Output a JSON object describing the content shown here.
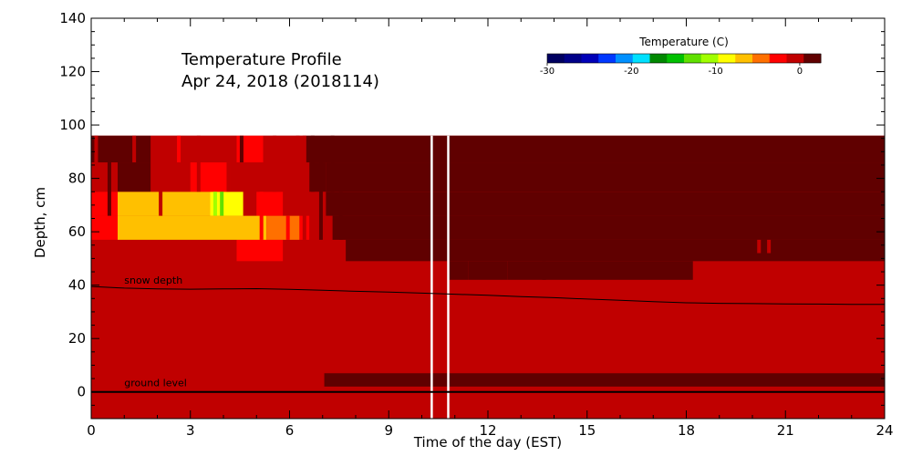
{
  "chart_data": {
    "type": "heatmap",
    "title": "Temperature Profile",
    "subtitle": "Apr 24, 2018 (2018114)",
    "xlabel": "Time of the day (EST)",
    "ylabel": "Depth, cm",
    "xlim": [
      0,
      24
    ],
    "ylim": [
      -10,
      140
    ],
    "x_ticks": [
      0,
      3,
      6,
      9,
      12,
      15,
      18,
      21,
      24
    ],
    "y_ticks": [
      0,
      20,
      40,
      60,
      80,
      100,
      120,
      140
    ],
    "grid": false,
    "colorbar": {
      "title": "Temperature (C)",
      "ticks": [
        -30,
        -20,
        -10,
        0
      ],
      "range": [
        -30,
        2.5
      ],
      "colors": [
        "#000060",
        "#000088",
        "#0000b8",
        "#0038ff",
        "#0090ff",
        "#00e0ff",
        "#008800",
        "#00c000",
        "#60e000",
        "#a0ff00",
        "#ffff00",
        "#ffc000",
        "#ff7000",
        "#ff0000",
        "#c00000",
        "#600000"
      ]
    },
    "background_temperature": 0.3,
    "cells": [
      {
        "t0": 7.05,
        "t1": 24,
        "d0": 2,
        "d1": 7,
        "temp": 2.2
      },
      {
        "t0": 10.8,
        "t1": 11.4,
        "d0": 42,
        "d1": 49,
        "temp": 1.3
      },
      {
        "t0": 11.4,
        "t1": 12.6,
        "d0": 42,
        "d1": 49,
        "temp": 1.5
      },
      {
        "t0": 12.6,
        "t1": 14.0,
        "d0": 42,
        "d1": 49,
        "temp": 1.9
      },
      {
        "t0": 14.0,
        "t1": 16.8,
        "d0": 42,
        "d1": 49,
        "temp": 1.5
      },
      {
        "t0": 16.8,
        "t1": 18.2,
        "d0": 42,
        "d1": 49,
        "temp": 1.4
      },
      {
        "t0": 0,
        "t1": 1.9,
        "d0": 49,
        "d1": 57,
        "temp": 0.3
      },
      {
        "t0": 1.9,
        "t1": 3.1,
        "d0": 49,
        "d1": 57,
        "temp": -0.4
      },
      {
        "t0": 3.1,
        "t1": 4.4,
        "d0": 49,
        "d1": 57,
        "temp": -1.4
      },
      {
        "t0": 4.4,
        "t1": 5.8,
        "d0": 49,
        "d1": 57,
        "temp": -3.0
      },
      {
        "t0": 5.8,
        "t1": 6.5,
        "d0": 49,
        "d1": 57,
        "temp": -1.4
      },
      {
        "t0": 6.5,
        "t1": 6.8,
        "d0": 49,
        "d1": 57,
        "temp": -0.4
      },
      {
        "t0": 6.8,
        "t1": 7.7,
        "d0": 49,
        "d1": 57,
        "temp": 0.3
      },
      {
        "t0": 7.7,
        "t1": 24,
        "d0": 49,
        "d1": 57,
        "temp": 2.2
      },
      {
        "t0": 19.9,
        "t1": 20.9,
        "d0": 52,
        "d1": 57,
        "temp": 1.3
      },
      {
        "t0": 0,
        "t1": 0.8,
        "d0": 57,
        "d1": 66,
        "temp": -3.0
      },
      {
        "t0": 0.8,
        "t1": 5.3,
        "d0": 57,
        "d1": 66,
        "temp": -6.0
      },
      {
        "t0": 5.3,
        "t1": 6.3,
        "d0": 57,
        "d1": 66,
        "temp": -4.2
      },
      {
        "t0": 6.3,
        "t1": 6.6,
        "d0": 57,
        "d1": 66,
        "temp": -3.0
      },
      {
        "t0": 6.6,
        "t1": 7.3,
        "d0": 57,
        "d1": 66,
        "temp": -1.4
      },
      {
        "t0": 7.3,
        "t1": 24,
        "d0": 57,
        "d1": 66,
        "temp": 2.2
      },
      {
        "t0": 0,
        "t1": 0.8,
        "d0": 66,
        "d1": 75,
        "temp": -3.0
      },
      {
        "t0": 0.8,
        "t1": 3.6,
        "d0": 66,
        "d1": 75,
        "temp": -6.0
      },
      {
        "t0": 3.6,
        "t1": 4.6,
        "d0": 66,
        "d1": 75,
        "temp": -8.0
      },
      {
        "t0": 4.6,
        "t1": 5.0,
        "d0": 66,
        "d1": 75,
        "temp": -1.4
      },
      {
        "t0": 5.0,
        "t1": 5.8,
        "d0": 66,
        "d1": 75,
        "temp": -3.0
      },
      {
        "t0": 5.8,
        "t1": 6.5,
        "d0": 66,
        "d1": 75,
        "temp": -0.4
      },
      {
        "t0": 6.5,
        "t1": 7.1,
        "d0": 66,
        "d1": 75,
        "temp": 0.3
      },
      {
        "t0": 7.1,
        "t1": 24,
        "d0": 66,
        "d1": 75,
        "temp": 2.2
      },
      {
        "t0": 0,
        "t1": 0.8,
        "d0": 75,
        "d1": 86,
        "temp": 0.3
      },
      {
        "t0": 0.8,
        "t1": 1.8,
        "d0": 75,
        "d1": 86,
        "temp": 1.3
      },
      {
        "t0": 1.8,
        "t1": 2.4,
        "d0": 75,
        "d1": 86,
        "temp": -0.4
      },
      {
        "t0": 2.4,
        "t1": 3.0,
        "d0": 75,
        "d1": 86,
        "temp": -1.4
      },
      {
        "t0": 3.0,
        "t1": 4.2,
        "d0": 75,
        "d1": 86,
        "temp": -3.0
      },
      {
        "t0": 4.2,
        "t1": 4.8,
        "d0": 75,
        "d1": 86,
        "temp": -0.4
      },
      {
        "t0": 4.8,
        "t1": 6.2,
        "d0": 75,
        "d1": 86,
        "temp": 0.3
      },
      {
        "t0": 6.2,
        "t1": 6.6,
        "d0": 75,
        "d1": 86,
        "temp": -1.4
      },
      {
        "t0": 6.6,
        "t1": 7.1,
        "d0": 75,
        "d1": 86,
        "temp": 1.3
      },
      {
        "t0": 7.1,
        "t1": 24,
        "d0": 75,
        "d1": 86,
        "temp": 2.2
      },
      {
        "t0": 0,
        "t1": 1.8,
        "d0": 86,
        "d1": 96,
        "temp": 2.2
      },
      {
        "t0": 1.8,
        "t1": 2.8,
        "d0": 86,
        "d1": 96,
        "temp": 0.3
      },
      {
        "t0": 2.8,
        "t1": 3.6,
        "d0": 86,
        "d1": 96,
        "temp": -1.4
      },
      {
        "t0": 3.6,
        "t1": 4.4,
        "d0": 86,
        "d1": 96,
        "temp": -0.4
      },
      {
        "t0": 4.4,
        "t1": 5.2,
        "d0": 86,
        "d1": 96,
        "temp": -3.0
      },
      {
        "t0": 5.2,
        "t1": 6.0,
        "d0": 86,
        "d1": 96,
        "temp": 0.3
      },
      {
        "t0": 6.0,
        "t1": 6.5,
        "d0": 86,
        "d1": 96,
        "temp": -1.4
      },
      {
        "t0": 6.5,
        "t1": 24,
        "d0": 86,
        "d1": 96,
        "temp": 2.2
      }
    ],
    "stripes": [
      {
        "t": 0.15,
        "d0": 75,
        "d1": 96,
        "temp": 0.3
      },
      {
        "t": 0.55,
        "d0": 66,
        "d1": 86,
        "temp": 1.3
      },
      {
        "t": 1.3,
        "d0": 86,
        "d1": 96,
        "temp": -1.4
      },
      {
        "t": 2.1,
        "d0": 66,
        "d1": 86,
        "temp": -0.4
      },
      {
        "t": 2.65,
        "d0": 86,
        "d1": 96,
        "temp": -3.0
      },
      {
        "t": 3.25,
        "d0": 75,
        "d1": 96,
        "temp": 0.3
      },
      {
        "t": 3.75,
        "d0": 66,
        "d1": 75,
        "temp": -10.0
      },
      {
        "t": 3.95,
        "d0": 66,
        "d1": 75,
        "temp": -12.0
      },
      {
        "t": 4.15,
        "d0": 75,
        "d1": 86,
        "temp": 0.3
      },
      {
        "t": 4.55,
        "d0": 86,
        "d1": 96,
        "temp": 1.3
      },
      {
        "t": 5.15,
        "d0": 57,
        "d1": 75,
        "temp": -3.0
      },
      {
        "t": 5.55,
        "d0": 75,
        "d1": 96,
        "temp": -1.4
      },
      {
        "t": 5.95,
        "d0": 57,
        "d1": 66,
        "temp": -3.0
      },
      {
        "t": 6.25,
        "d0": 75,
        "d1": 96,
        "temp": -0.4
      },
      {
        "t": 6.45,
        "d0": 57,
        "d1": 96,
        "temp": 0.3
      },
      {
        "t": 6.7,
        "d0": 75,
        "d1": 96,
        "temp": 1.3
      },
      {
        "t": 6.95,
        "d0": 57,
        "d1": 86,
        "temp": 1.3
      },
      {
        "t": 7.3,
        "d0": 75,
        "d1": 96,
        "temp": 1.3
      },
      {
        "t": 7.55,
        "d0": 57,
        "d1": 75,
        "temp": 1.3
      },
      {
        "t": 13.7,
        "d0": 42,
        "d1": 49,
        "temp": 1.3
      },
      {
        "t": 20.2,
        "d0": 52,
        "d1": 57,
        "temp": 0.3
      },
      {
        "t": 20.5,
        "d0": 52,
        "d1": 57,
        "temp": 0.3
      }
    ],
    "white_lines": [
      10.3,
      10.8
    ],
    "ground_level": {
      "label": "ground level",
      "depth": 0
    },
    "snow_depth": {
      "label": "snow depth",
      "x": [
        0,
        1,
        2,
        3,
        4,
        5,
        6,
        7,
        8,
        9,
        10,
        11,
        12,
        13,
        14,
        15,
        16,
        17,
        18,
        19,
        20,
        21,
        22,
        23,
        24
      ],
      "y": [
        39.5,
        38.9,
        38.6,
        38.5,
        38.6,
        38.7,
        38.4,
        38.1,
        37.7,
        37.4,
        37.0,
        36.6,
        36.2,
        35.7,
        35.3,
        34.8,
        34.3,
        33.8,
        33.4,
        33.2,
        33.1,
        33.0,
        32.9,
        32.8,
        32.8
      ]
    }
  }
}
